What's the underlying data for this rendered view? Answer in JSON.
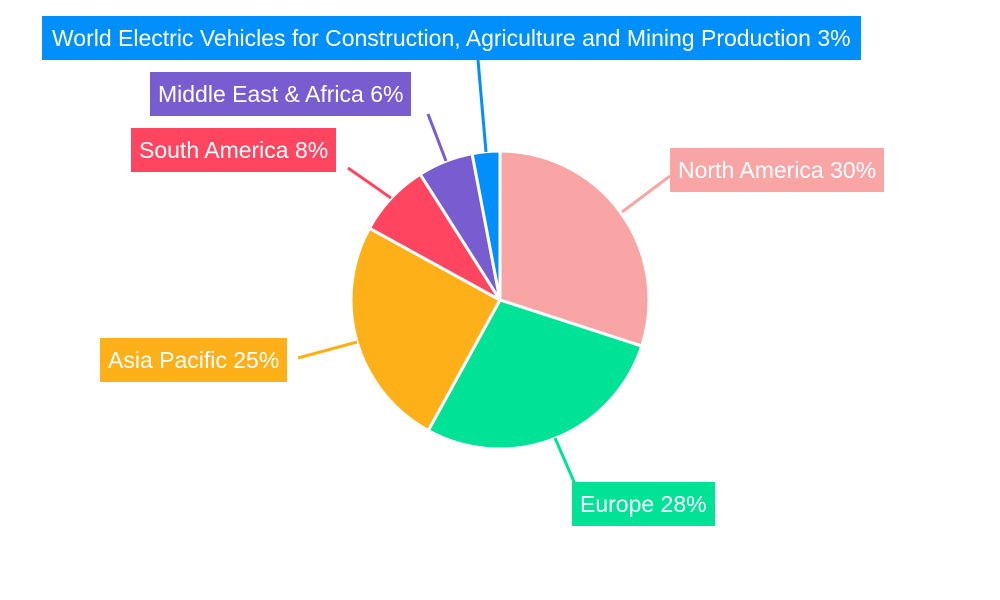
{
  "chart_data": {
    "type": "pie",
    "categories": [
      "North America",
      "Europe",
      "Asia Pacific",
      "South America",
      "Middle East & Africa",
      "World Electric Vehicles for Construction, Agriculture and Mining Production"
    ],
    "values": [
      30,
      28,
      25,
      8,
      6,
      3
    ],
    "colors": [
      "#F9A5A5",
      "#00E396",
      "#FEB019",
      "#FF4560",
      "#775DD0",
      "#008FFB"
    ],
    "labels": [
      "North America 30%",
      "Europe 28%",
      "Asia Pacific 25%",
      "South America 8%",
      "Middle East & Africa 6%",
      "World Electric Vehicles for Construction, Agriculture and Mining Production 3%"
    ],
    "start_angle": "top",
    "direction": "clockwise",
    "legend": "none"
  }
}
